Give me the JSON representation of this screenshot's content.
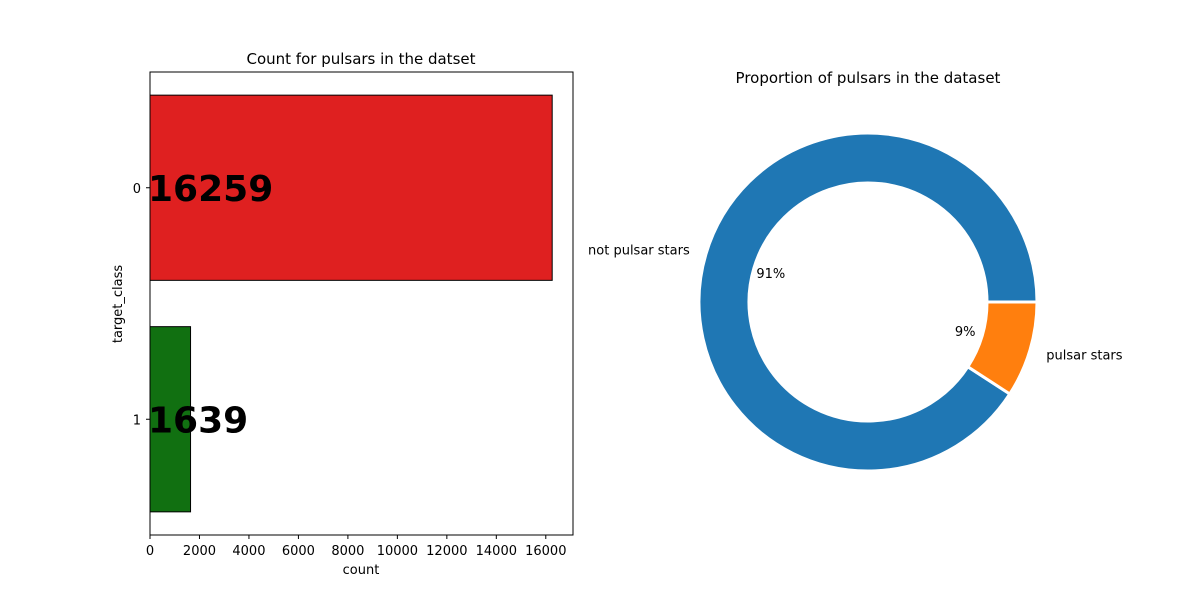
{
  "chart_data": [
    {
      "type": "bar",
      "orientation": "horizontal",
      "title": "Count for pulsars in the datset",
      "xlabel": "count",
      "ylabel": "target_class",
      "categories": [
        "0",
        "1"
      ],
      "values": [
        16259,
        1639
      ],
      "value_labels": [
        "16259",
        "1639"
      ],
      "colors": [
        "#df2020",
        "#117011"
      ],
      "xlim": [
        0,
        17100
      ],
      "xticks": [
        0,
        2000,
        4000,
        6000,
        8000,
        10000,
        12000,
        14000,
        16000
      ],
      "grid": false
    },
    {
      "type": "pie",
      "style": "donut",
      "title": "Proportion of pulsars in the dataset",
      "labels": [
        "not pulsar stars",
        "pulsar stars"
      ],
      "values": [
        16259,
        1639
      ],
      "pct_labels": [
        "91%",
        "9%"
      ],
      "colors": [
        "#1f77b4",
        "#ff7f0e"
      ]
    }
  ]
}
